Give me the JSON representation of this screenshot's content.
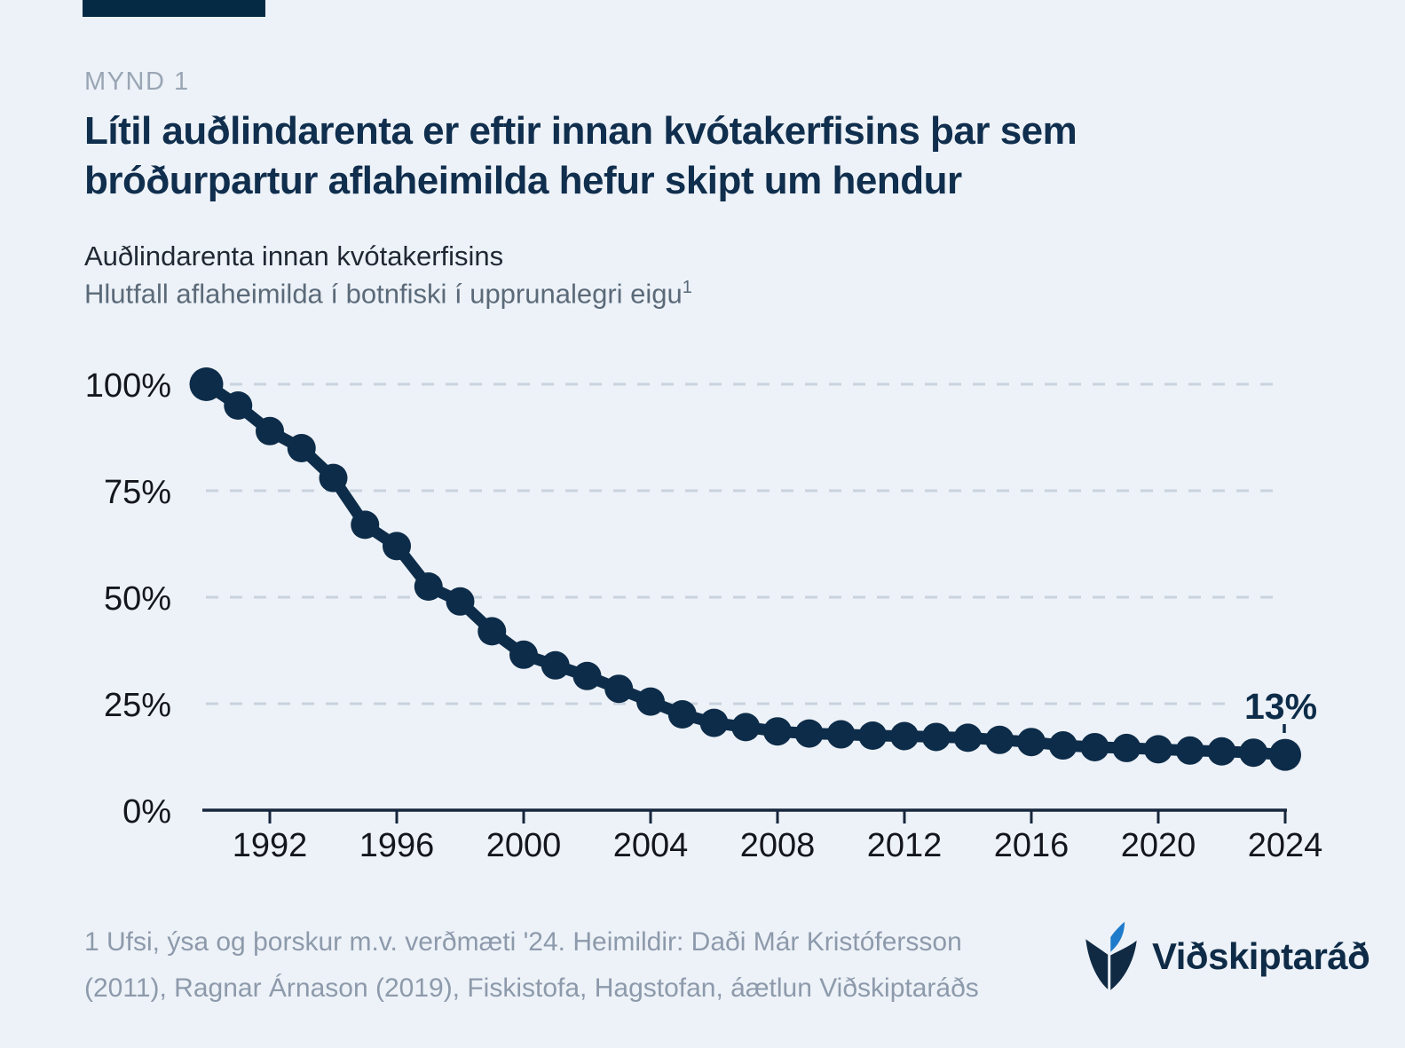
{
  "page": {
    "background_color": "#edf2f8",
    "accent_bar_color": "#052a44"
  },
  "header": {
    "kicker": "MYND 1",
    "title_lines": [
      "Lítil auðlindarenta er eftir innan kvótakerfisins þar sem",
      "bróðurpartur aflaheimilda hefur skipt um hendur"
    ],
    "subtitle": "Auðlindarenta innan kvótakerfisins",
    "subtitle2": "Hlutfall aflaheimilda í botnfiski í upprunalegri eigu",
    "subtitle2_sup": "1"
  },
  "chart_data": {
    "type": "line",
    "title": "Auðlindarenta innan kvótakerfisins",
    "ylabel": "Hlutfall aflaheimilda í botnfiski í upprunalegri eigu",
    "x": [
      1990,
      1991,
      1992,
      1993,
      1994,
      1995,
      1996,
      1997,
      1998,
      1999,
      2000,
      2001,
      2002,
      2003,
      2004,
      2005,
      2006,
      2007,
      2008,
      2009,
      2010,
      2011,
      2012,
      2013,
      2014,
      2015,
      2016,
      2017,
      2018,
      2019,
      2020,
      2021,
      2022,
      2023,
      2024
    ],
    "values": [
      100,
      95,
      89,
      85,
      78,
      67,
      62,
      52.5,
      49,
      42,
      36.5,
      34,
      31.5,
      28.5,
      25.5,
      22.5,
      20.5,
      19.5,
      18.5,
      18,
      17.8,
      17.5,
      17.4,
      17.2,
      17,
      16.5,
      16,
      15.2,
      14.8,
      14.6,
      14.3,
      14,
      13.8,
      13.5,
      13
    ],
    "end_label": "13%",
    "x_ticks": [
      1992,
      1996,
      2000,
      2004,
      2008,
      2012,
      2016,
      2020,
      2024
    ],
    "y_ticks": [
      0,
      25,
      50,
      75,
      100
    ],
    "y_tick_labels": [
      "0%",
      "25%",
      "50%",
      "75%",
      "100%"
    ],
    "y_gridlines": [
      25,
      50,
      75,
      100
    ],
    "xlim": [
      1990,
      2024
    ],
    "ylim": [
      0,
      100
    ],
    "grid": "horizontal-dashed",
    "legend": "none",
    "line_color": "#0d2c49",
    "grid_color": "#c9d3de",
    "axis_color": "#16263c",
    "tick_label_color": "#14161d"
  },
  "footer": {
    "note_line1": "1 Ufsi, ýsa og þorskur m.v. verðmæti '24. Heimildir: Daði Már Kristófersson",
    "note_line2": "(2011), Ragnar Árnason (2019), Fiskistofa, Hagstofan, áætlun Viðskiptaráðs",
    "logo_text": "Viðskiptaráð",
    "logo_navy": "#102a44",
    "logo_blue": "#1e7bcb"
  }
}
